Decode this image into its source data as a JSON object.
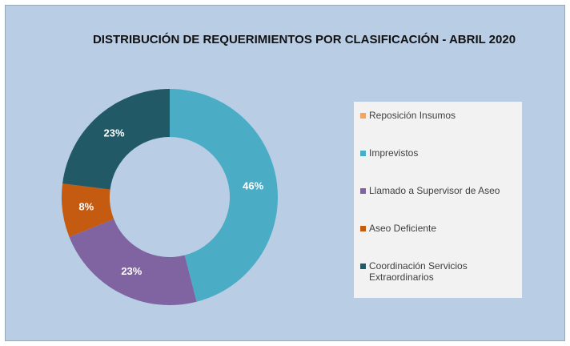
{
  "chart_data": {
    "type": "donut",
    "title": "DISTRIBUCIÓN DE REQUERIMIENTOS POR CLASIFICACIÓN  - ABRIL 2020",
    "categories": [
      "Reposición Insumos",
      "Imprevistos",
      "Llamado a Supervisor de Aseo",
      "Aseo Deficiente",
      "Coordinación Servicios Extraordinarios"
    ],
    "values": [
      0,
      46,
      23,
      8,
      23
    ],
    "value_labels": [
      "0%",
      "46%",
      "23%",
      "8%",
      "23%"
    ],
    "colors": [
      "#f4a460",
      "#4bacc6",
      "#8064a2",
      "#c55a11",
      "#215967"
    ],
    "legend": "right"
  }
}
